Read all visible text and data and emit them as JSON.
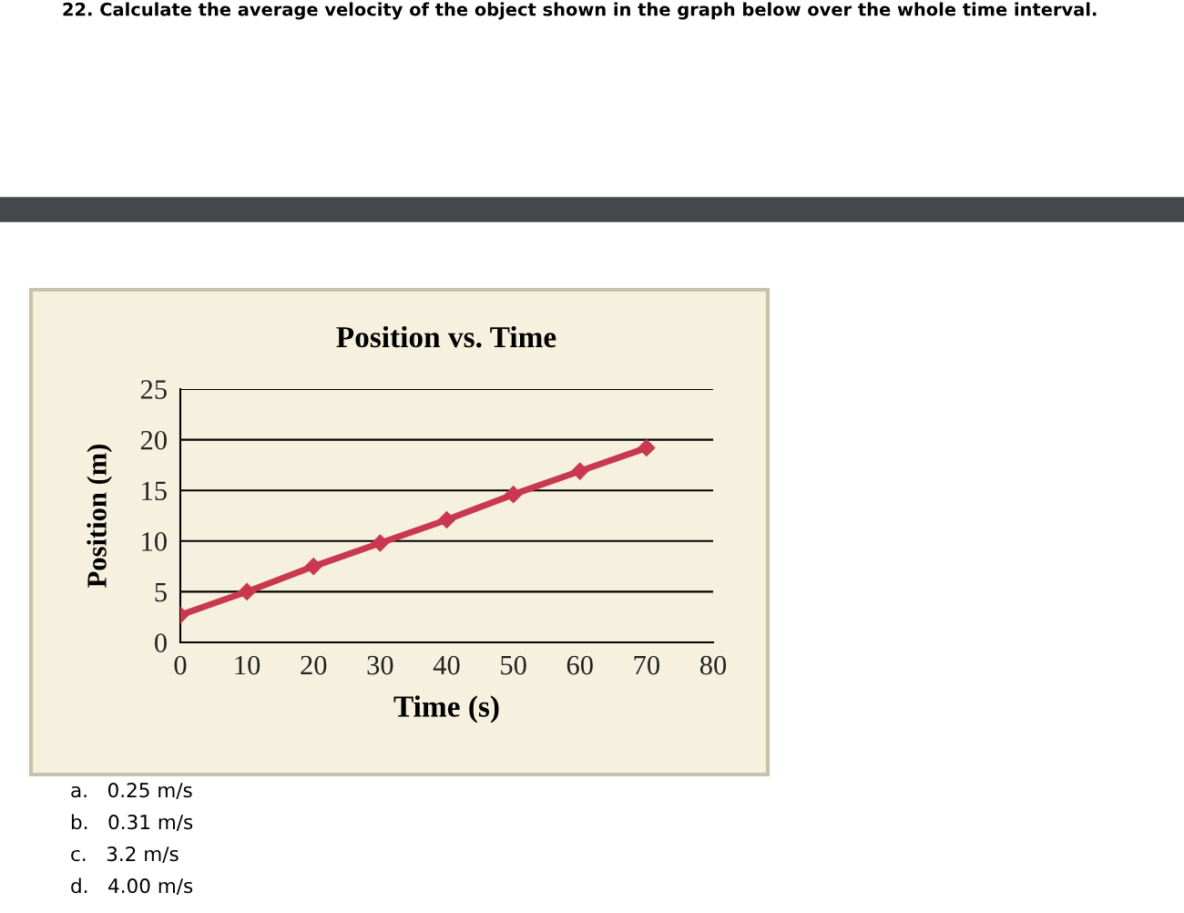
{
  "chart_data": {
    "type": "line",
    "title": "Position vs. Time",
    "xlabel": "Time (s)",
    "ylabel": "Position (m)",
    "x": [
      0,
      10,
      20,
      30,
      40,
      50,
      60,
      70
    ],
    "series": [
      {
        "color": "#c9384f",
        "values": [
          2.7,
          5,
          7.5,
          9.8,
          12.1,
          14.6,
          16.9,
          19.2
        ]
      }
    ],
    "xlim": [
      0,
      80
    ],
    "xticks": [
      0,
      10,
      20,
      30,
      40,
      50,
      60,
      70,
      80
    ],
    "ylim": [
      0,
      25
    ],
    "yticks": [
      0,
      5,
      10,
      15,
      20,
      25
    ],
    "grid": "y",
    "marker": "diamond",
    "line_style": "solid",
    "legend": false,
    "annotations": [
      "22. Calculate the average velocity of the object shown in the graph below over the whole time interval.",
      "a.   0.25 m/s",
      "b.   0.31 m/s",
      "c.   3.2 m/s",
      "d.   4.00 m/s"
    ]
  }
}
